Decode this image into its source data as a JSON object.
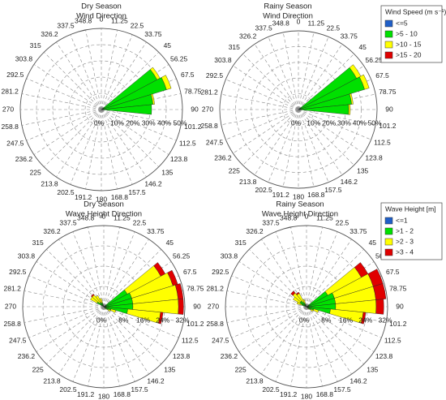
{
  "chart_data": [
    {
      "type": "rose",
      "title": "Dry Season",
      "subtitle": "Wind Direction",
      "categories": [
        0,
        11.25,
        22.5,
        33.75,
        45,
        56.25,
        67.5,
        78.75,
        90,
        101.2,
        112.5,
        123.8,
        135,
        146.2,
        157.5,
        168.8,
        180,
        191.2,
        202.5,
        213.8,
        225,
        236.2,
        247.5,
        258.8,
        270,
        281.2,
        292.5,
        303.8,
        315,
        326.2,
        337.5,
        348.8
      ],
      "rlim": [
        0,
        50
      ],
      "rticks": [
        {
          "value": 0,
          "label": "0%"
        },
        {
          "value": 10,
          "label": "10%"
        },
        {
          "value": 20,
          "label": "20%"
        },
        {
          "value": 30,
          "label": "30%"
        },
        {
          "value": 40,
          "label": "40%"
        },
        {
          "value": 50,
          "label": "50%"
        }
      ],
      "legend": false,
      "series": [
        {
          "color": "#1f5fc8",
          "values": [
            0,
            0,
            0,
            0,
            0,
            1,
            1,
            1,
            1,
            0,
            0,
            0,
            0,
            0,
            0,
            0,
            0,
            0,
            0,
            0,
            0,
            0,
            0,
            0,
            0,
            0,
            0,
            0,
            0,
            0,
            0,
            0
          ]
        },
        {
          "color": "#00e000",
          "values": [
            0,
            0,
            0,
            0,
            0,
            38,
            41,
            31,
            30,
            0,
            0,
            0,
            0,
            0,
            0,
            0,
            0,
            0,
            0,
            0,
            0,
            0,
            0,
            0,
            0,
            0,
            0,
            0,
            0,
            0,
            0,
            0
          ]
        },
        {
          "color": "#ffff00",
          "values": [
            0,
            0,
            0,
            0,
            0,
            2,
            3,
            1,
            0,
            0,
            0,
            0,
            0,
            0,
            0,
            0,
            0,
            0,
            0,
            0,
            0,
            0,
            0,
            0,
            0,
            0,
            0,
            0,
            0,
            0,
            0,
            0
          ]
        },
        {
          "color": "#e00000",
          "values": [
            0,
            0,
            0,
            0,
            0,
            0,
            0,
            0,
            0,
            0,
            0,
            0,
            0,
            0,
            0,
            0,
            0,
            0,
            0,
            0,
            0,
            0,
            0,
            0,
            0,
            0,
            0,
            0,
            0,
            0,
            0,
            0
          ]
        }
      ]
    },
    {
      "type": "rose",
      "title": "Rainy Season",
      "subtitle": "Wind Direction",
      "categories": [
        0,
        11.25,
        22.5,
        33.75,
        45,
        56.25,
        67.5,
        78.75,
        90,
        101.2,
        112.5,
        123.8,
        135,
        146.2,
        157.5,
        168.8,
        180,
        191.2,
        202.5,
        213.8,
        225,
        236.2,
        247.5,
        258.8,
        270,
        281.2,
        292.5,
        303.8,
        315,
        326.2,
        337.5,
        348.8
      ],
      "rlim": [
        0,
        50
      ],
      "rticks": [
        {
          "value": 0,
          "label": "0%"
        },
        {
          "value": 10,
          "label": "10%"
        },
        {
          "value": 20,
          "label": "20%"
        },
        {
          "value": 30,
          "label": "30%"
        },
        {
          "value": 40,
          "label": "40%"
        },
        {
          "value": 50,
          "label": "50%"
        }
      ],
      "legend": true,
      "legend_title": "Wind Speed (m s⁻¹)",
      "series": [
        {
          "name": "<=5",
          "color": "#1f5fc8",
          "values": [
            0,
            0,
            0,
            0,
            0,
            1,
            1,
            1,
            1,
            0,
            0,
            0,
            0,
            0,
            0,
            0,
            0,
            0,
            0,
            0,
            0,
            0,
            0,
            0,
            0,
            0,
            0,
            0,
            0,
            0,
            0,
            0
          ]
        },
        {
          "name": ">5 - 10",
          "color": "#00e000",
          "values": [
            0,
            0,
            0,
            0,
            0,
            41,
            43,
            33,
            31,
            0,
            0,
            0,
            0,
            0,
            0,
            0,
            0,
            0,
            0,
            0,
            0,
            0,
            0,
            0,
            0,
            0,
            0,
            0,
            0,
            0,
            0,
            0
          ]
        },
        {
          "name": ">10 - 15",
          "color": "#ffff00",
          "values": [
            0,
            0,
            0,
            0,
            0,
            3,
            3,
            1,
            1,
            0,
            0,
            0,
            0,
            0,
            0,
            0,
            0,
            0,
            0,
            0,
            0,
            0,
            0,
            0,
            0,
            0,
            0,
            0,
            0,
            0,
            0,
            0
          ]
        },
        {
          "name": ">15 - 20",
          "color": "#e00000",
          "values": [
            0,
            0,
            0,
            0,
            0,
            0,
            0,
            0,
            0,
            0,
            0,
            0,
            0,
            0,
            0,
            0,
            0,
            0,
            0,
            0,
            0,
            0,
            0,
            0,
            0,
            0,
            0,
            0,
            0,
            0,
            0,
            0
          ]
        }
      ]
    },
    {
      "type": "rose",
      "title": "Dry Season",
      "subtitle": "Wave Height Direction",
      "categories": [
        0,
        11.25,
        22.5,
        33.75,
        45,
        56.25,
        67.5,
        78.75,
        90,
        101.2,
        112.5,
        123.8,
        135,
        146.2,
        157.5,
        168.8,
        180,
        191.2,
        202.5,
        213.8,
        225,
        236.2,
        247.5,
        258.8,
        270,
        281.2,
        292.5,
        303.8,
        315,
        326.2,
        337.5,
        348.8
      ],
      "rlim": [
        0,
        32
      ],
      "rticks": [
        {
          "value": 0,
          "label": "0%"
        },
        {
          "value": 8,
          "label": "8%"
        },
        {
          "value": 16,
          "label": "16%"
        },
        {
          "value": 24,
          "label": "24%"
        },
        {
          "value": 32,
          "label": "32%"
        }
      ],
      "legend": false,
      "series": [
        {
          "color": "#1f5fc8",
          "values": [
            0,
            0,
            0,
            0,
            0,
            0.5,
            0.5,
            0.5,
            0.5,
            0.5,
            0,
            0,
            0,
            0,
            0,
            0,
            0,
            0,
            0,
            0,
            0,
            0,
            0,
            0,
            0,
            0,
            0,
            0,
            0,
            0,
            0,
            0
          ]
        },
        {
          "color": "#00e000",
          "values": [
            0,
            0,
            0,
            0,
            0,
            10,
            11,
            11,
            11,
            9,
            3,
            2,
            1,
            0,
            0,
            0,
            0,
            0,
            0,
            0,
            0,
            0,
            0,
            0,
            0,
            0,
            0,
            3,
            2,
            2,
            1.5,
            0
          ]
        },
        {
          "color": "#ffff00",
          "values": [
            0,
            0,
            0,
            0,
            0,
            15,
            17,
            18,
            18,
            13,
            2,
            1,
            0.5,
            0,
            0,
            0,
            0,
            0,
            0,
            0,
            0,
            0,
            0,
            0,
            0,
            0,
            0,
            3,
            4,
            3,
            2,
            0
          ]
        },
        {
          "color": "#e00000",
          "values": [
            0,
            0,
            0,
            0,
            0,
            2,
            2,
            2,
            2,
            1,
            0,
            0,
            0,
            0,
            0,
            0,
            0,
            0,
            0,
            0,
            0,
            0,
            0,
            0,
            0,
            0,
            0,
            0,
            0.5,
            0,
            0,
            0
          ]
        }
      ]
    },
    {
      "type": "rose",
      "title": "Rainy Season",
      "subtitle": "Wave Height Direction",
      "categories": [
        0,
        11.25,
        22.5,
        33.75,
        45,
        56.25,
        67.5,
        78.75,
        90,
        101.2,
        112.5,
        123.8,
        135,
        146.2,
        157.5,
        168.8,
        180,
        191.2,
        202.5,
        213.8,
        225,
        236.2,
        247.5,
        258.8,
        270,
        281.2,
        292.5,
        303.8,
        315,
        326.2,
        337.5,
        348.8
      ],
      "rlim": [
        0,
        32
      ],
      "rticks": [
        {
          "value": 0,
          "label": "0%"
        },
        {
          "value": 8,
          "label": "8%"
        },
        {
          "value": 16,
          "label": "16%"
        },
        {
          "value": 24,
          "label": "24%"
        },
        {
          "value": 32,
          "label": "32%"
        }
      ],
      "legend": true,
      "legend_title": "Wave Height [m]",
      "series": [
        {
          "name": "<=1",
          "color": "#1f5fc8",
          "values": [
            0,
            0,
            0,
            0,
            0,
            0.5,
            0.5,
            0.5,
            0.5,
            0.5,
            0,
            0,
            0,
            0,
            0,
            0,
            0,
            0,
            0,
            0,
            0,
            0,
            0,
            0,
            0,
            0,
            0,
            0,
            0,
            0,
            0,
            0
          ]
        },
        {
          "name": ">1 - 2",
          "color": "#00e000",
          "values": [
            0,
            0,
            0,
            0,
            0,
            9,
            11,
            11,
            11,
            9,
            3,
            2,
            1,
            0,
            0,
            0,
            0,
            0,
            0,
            0,
            0,
            0,
            0,
            0,
            0,
            0,
            2,
            3,
            3,
            2,
            1,
            0
          ]
        },
        {
          "name": ">2 - 3",
          "color": "#ffff00",
          "values": [
            0,
            0,
            0,
            0,
            0,
            15,
            16,
            16,
            16,
            13,
            2,
            1,
            0.5,
            0,
            0,
            0,
            0,
            0,
            0,
            0,
            0,
            0,
            0,
            0,
            0,
            0,
            2,
            3,
            4,
            4,
            2,
            0
          ]
        },
        {
          "name": ">3 - 4",
          "color": "#e00000",
          "values": [
            0,
            0,
            0,
            0,
            0,
            3,
            4,
            4,
            3,
            1,
            0,
            0,
            0,
            0,
            0,
            0,
            0,
            0,
            0,
            0,
            0,
            0,
            0,
            0,
            0,
            0,
            0,
            0,
            1,
            0.5,
            0,
            0
          ]
        }
      ]
    }
  ]
}
